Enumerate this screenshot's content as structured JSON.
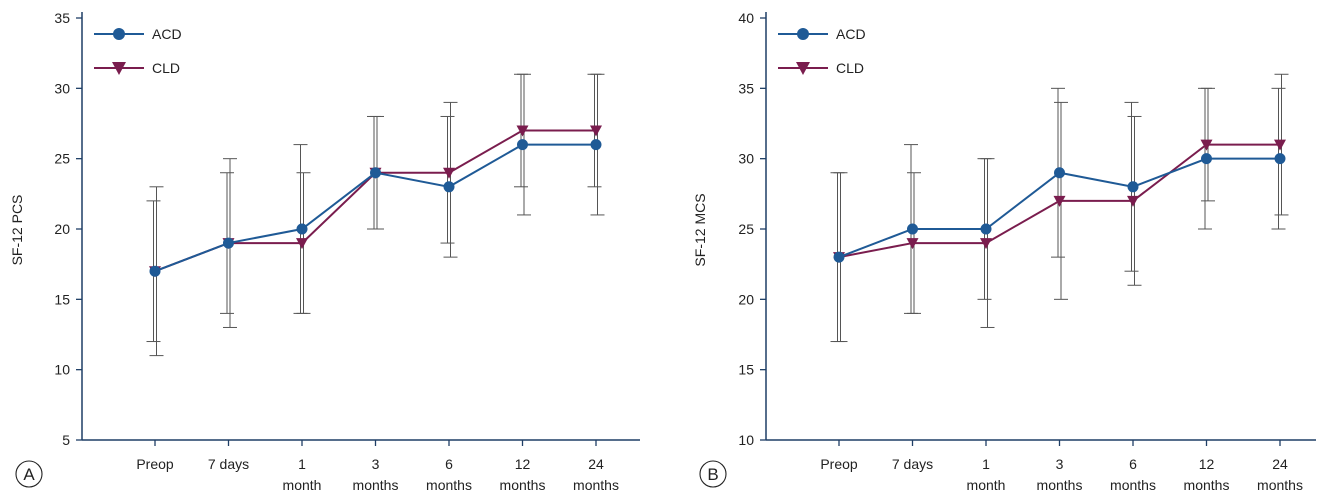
{
  "chart_data": [
    {
      "type": "line",
      "panel_label": "A",
      "xlabel": "",
      "ylabel": "SF-12 PCS",
      "ylim": [
        5,
        35
      ],
      "yticks": [
        5,
        10,
        15,
        20,
        25,
        30,
        35
      ],
      "categories": [
        [
          "Preop"
        ],
        [
          "7 days"
        ],
        [
          "1",
          "month"
        ],
        [
          "3",
          "months"
        ],
        [
          "6",
          "months"
        ],
        [
          "12",
          "months"
        ],
        [
          "24",
          "months"
        ]
      ],
      "grid": false,
      "legend_position": "top-left",
      "series": [
        {
          "name": "ACD",
          "marker": "circle",
          "color": "#1f5a96",
          "values": [
            17,
            19,
            20,
            24,
            23,
            26,
            26
          ],
          "err_low": [
            12,
            14,
            14,
            20,
            19,
            23,
            23
          ],
          "err_high": [
            22,
            24,
            26,
            28,
            28,
            31,
            31
          ]
        },
        {
          "name": "CLD",
          "marker": "triangle-down",
          "color": "#7a1d4e",
          "values": [
            17,
            19,
            19,
            24,
            24,
            27,
            27
          ],
          "err_low": [
            11,
            13,
            14,
            20,
            18,
            21,
            21
          ],
          "err_high": [
            23,
            25,
            24,
            28,
            29,
            31,
            31
          ]
        }
      ]
    },
    {
      "type": "line",
      "panel_label": "B",
      "xlabel": "",
      "ylabel": "SF-12 MCS",
      "ylim": [
        10,
        40
      ],
      "yticks": [
        10,
        15,
        20,
        25,
        30,
        35,
        40
      ],
      "categories": [
        [
          "Preop"
        ],
        [
          "7 days"
        ],
        [
          "1",
          "month"
        ],
        [
          "3",
          "months"
        ],
        [
          "6",
          "months"
        ],
        [
          "12",
          "months"
        ],
        [
          "24",
          "months"
        ]
      ],
      "grid": false,
      "legend_position": "top-left",
      "series": [
        {
          "name": "ACD",
          "marker": "circle",
          "color": "#1f5a96",
          "values": [
            23,
            25,
            25,
            29,
            28,
            30,
            30
          ],
          "err_low": [
            17,
            19,
            20,
            23,
            22,
            25,
            25
          ],
          "err_high": [
            29,
            31,
            30,
            35,
            34,
            35,
            35
          ]
        },
        {
          "name": "CLD",
          "marker": "triangle-down",
          "color": "#7a1d4e",
          "values": [
            23,
            24,
            24,
            27,
            27,
            31,
            31
          ],
          "err_low": [
            17,
            19,
            18,
            20,
            21,
            27,
            26
          ],
          "err_high": [
            29,
            29,
            30,
            34,
            33,
            35,
            36
          ]
        }
      ]
    }
  ]
}
